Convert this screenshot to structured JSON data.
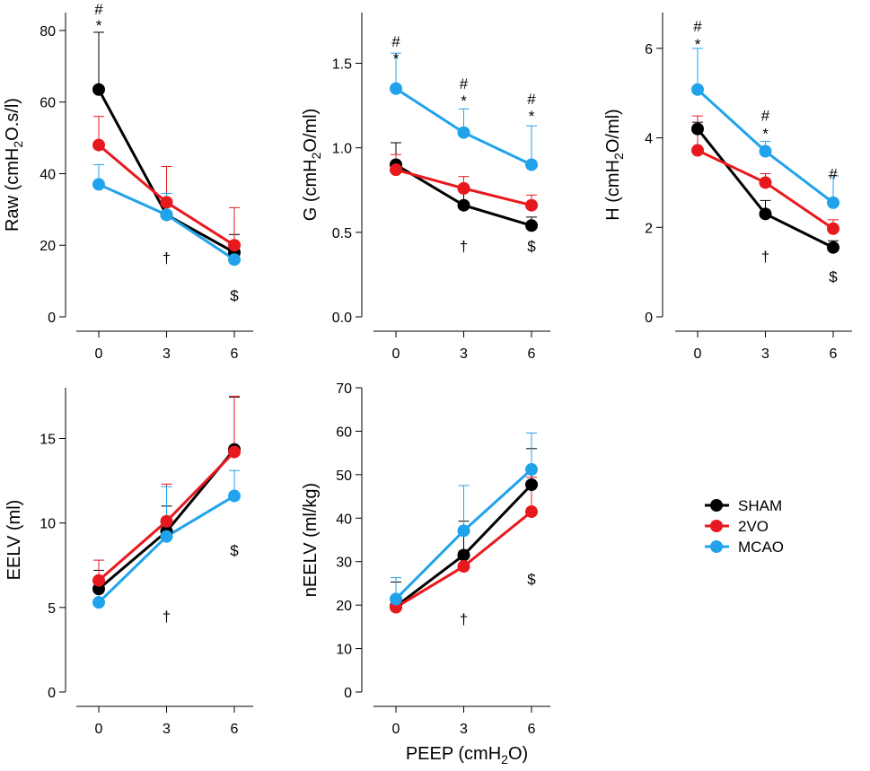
{
  "figure": {
    "shared_xlabel": "PEEP (cmH2O)"
  },
  "legend": [
    {
      "name": "SHAM",
      "color": "#000000"
    },
    {
      "name": "2VO",
      "color": "#e8191e"
    },
    {
      "name": "MCAO",
      "color": "#21a3ec"
    }
  ],
  "chart_data": [
    {
      "id": "raw",
      "type": "line",
      "ylabel": "Raw (cmH2O.s/l)",
      "x": [
        0,
        3,
        6
      ],
      "xticks": [
        "0",
        "3",
        "6"
      ],
      "ylim": [
        0,
        85
      ],
      "yticks": [
        0,
        20,
        40,
        60,
        80
      ],
      "ytick_labels": [
        "0",
        "20",
        "40",
        "60",
        "80"
      ],
      "series": [
        {
          "name": "SHAM",
          "values": [
            63.5,
            28.5,
            18
          ],
          "err": [
            16,
            4.5,
            5
          ]
        },
        {
          "name": "2VO",
          "values": [
            48,
            32,
            20
          ],
          "err": [
            8,
            10,
            10.5
          ]
        },
        {
          "name": "MCAO",
          "values": [
            37,
            28.5,
            16
          ],
          "err": [
            5.5,
            6,
            5
          ]
        }
      ],
      "annotations": [
        {
          "x": 0,
          "y": 86,
          "text": "#"
        },
        {
          "x": 0,
          "y": 81.5,
          "text": "*"
        },
        {
          "x": 3,
          "y": 16.5,
          "text": "†"
        },
        {
          "x": 6,
          "y": 6,
          "text": "$"
        }
      ]
    },
    {
      "id": "g",
      "type": "line",
      "ylabel": "G (cmH2O/ml)",
      "x": [
        0,
        3,
        6
      ],
      "xticks": [
        "0",
        "3",
        "6"
      ],
      "ylim": [
        0,
        1.8
      ],
      "yticks": [
        0,
        0.5,
        1.0,
        1.5
      ],
      "ytick_labels": [
        "0.0",
        "0.5",
        "1.0",
        "1.5"
      ],
      "series": [
        {
          "name": "SHAM",
          "values": [
            0.9,
            0.66,
            0.54
          ],
          "err": [
            0.13,
            0.1,
            0.05
          ]
        },
        {
          "name": "2VO",
          "values": [
            0.87,
            0.76,
            0.66
          ],
          "err": [
            0.09,
            0.07,
            0.06
          ]
        },
        {
          "name": "MCAO",
          "values": [
            1.35,
            1.09,
            0.9
          ],
          "err": [
            0.21,
            0.14,
            0.23
          ]
        }
      ],
      "annotations": [
        {
          "x": 0,
          "y": 1.63,
          "text": "#"
        },
        {
          "x": 0,
          "y": 1.53,
          "text": "*"
        },
        {
          "x": 3,
          "y": 1.38,
          "text": "#"
        },
        {
          "x": 3,
          "y": 1.28,
          "text": "*"
        },
        {
          "x": 6,
          "y": 1.29,
          "text": "#"
        },
        {
          "x": 6,
          "y": 1.19,
          "text": "*"
        },
        {
          "x": 3,
          "y": 0.42,
          "text": "†"
        },
        {
          "x": 6,
          "y": 0.42,
          "text": "$"
        }
      ]
    },
    {
      "id": "h",
      "type": "line",
      "ylabel": "H (cmH2O/ml)",
      "x": [
        0,
        3,
        6
      ],
      "xticks": [
        "0",
        "3",
        "6"
      ],
      "ylim": [
        0,
        6.8
      ],
      "yticks": [
        0,
        2,
        4,
        6
      ],
      "ytick_labels": [
        "0",
        "2",
        "4",
        "6"
      ],
      "series": [
        {
          "name": "SHAM",
          "values": [
            4.2,
            2.3,
            1.55
          ],
          "err": [
            0.15,
            0.3,
            0.15
          ]
        },
        {
          "name": "2VO",
          "values": [
            3.72,
            3.0,
            1.97
          ],
          "err": [
            0.77,
            0.2,
            0.2
          ]
        },
        {
          "name": "MCAO",
          "values": [
            5.08,
            3.7,
            2.55
          ],
          "err": [
            0.92,
            0.22,
            0.6
          ]
        }
      ],
      "annotations": [
        {
          "x": 0,
          "y": 6.5,
          "text": "#"
        },
        {
          "x": 0,
          "y": 6.1,
          "text": "*"
        },
        {
          "x": 3,
          "y": 4.5,
          "text": "#"
        },
        {
          "x": 3,
          "y": 4.1,
          "text": "*"
        },
        {
          "x": 6,
          "y": 3.2,
          "text": "#"
        },
        {
          "x": 3,
          "y": 1.35,
          "text": "†"
        },
        {
          "x": 6,
          "y": 0.9,
          "text": "$"
        }
      ]
    },
    {
      "id": "eelv",
      "type": "line",
      "ylabel": "EELV (ml)",
      "x": [
        0,
        3,
        6
      ],
      "xticks": [
        "0",
        "3",
        "6"
      ],
      "ylim": [
        0,
        18
      ],
      "yticks": [
        0,
        5,
        10,
        15
      ],
      "ytick_labels": [
        "0",
        "5",
        "10",
        "15"
      ],
      "series": [
        {
          "name": "SHAM",
          "values": [
            6.1,
            9.5,
            14.35
          ],
          "err": [
            1.1,
            1.5,
            3.1
          ]
        },
        {
          "name": "2VO",
          "values": [
            6.6,
            10.1,
            14.2
          ],
          "err": [
            1.2,
            2.2,
            3.3
          ]
        },
        {
          "name": "MCAO",
          "values": [
            5.3,
            9.2,
            11.6
          ],
          "err": [
            1.45,
            2.95,
            1.5
          ]
        }
      ],
      "annotations": [
        {
          "x": 3,
          "y": 4.5,
          "text": "†"
        },
        {
          "x": 6,
          "y": 8.4,
          "text": "$"
        }
      ]
    },
    {
      "id": "neelv",
      "type": "line",
      "ylabel": "nEELV (ml/kg)",
      "x": [
        0,
        3,
        6
      ],
      "xticks": [
        "0",
        "3",
        "6"
      ],
      "ylim": [
        0,
        70
      ],
      "yticks": [
        0,
        10,
        20,
        30,
        40,
        50,
        60,
        70
      ],
      "ytick_labels": [
        "0",
        "10",
        "20",
        "30",
        "40",
        "50",
        "60",
        "70"
      ],
      "series": [
        {
          "name": "SHAM",
          "values": [
            19.7,
            31.5,
            47.7
          ],
          "err": [
            5.6,
            7.8,
            8.3
          ]
        },
        {
          "name": "2VO",
          "values": [
            19.5,
            28.9,
            41.5
          ],
          "err": [
            2.5,
            3.6,
            7.9
          ]
        },
        {
          "name": "MCAO",
          "values": [
            21.4,
            37.1,
            51.2
          ],
          "err": [
            4.9,
            10.4,
            8.4
          ]
        }
      ],
      "annotations": [
        {
          "x": 3,
          "y": 16.8,
          "text": "†"
        },
        {
          "x": 6,
          "y": 26,
          "text": "$"
        }
      ]
    }
  ]
}
